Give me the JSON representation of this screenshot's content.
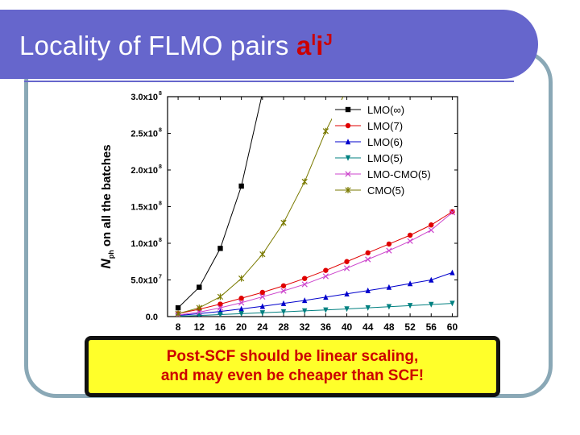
{
  "slide": {
    "title_text": "Locality of FLMO pairs ",
    "title_symbol": "a",
    "title_sup1": "I",
    "title_mid": "i",
    "title_sup2": "J",
    "callout_line1": "Post-SCF should be linear scaling,",
    "callout_line2": "and may even be cheaper than SCF!"
  },
  "colors": {
    "title_bar": "#6666cc",
    "frame": "#8aa8b6",
    "callout_bg": "#ffff2a",
    "callout_text": "#cc0000"
  },
  "chart_data": {
    "type": "line",
    "title": "",
    "xlabel": "",
    "ylabel_main": "N",
    "ylabel_sub": "ph",
    "ylabel_rest": " on all the batches",
    "xlim": [
      6,
      61
    ],
    "ylim": [
      0,
      300000000
    ],
    "xticks": [
      8,
      12,
      16,
      20,
      24,
      28,
      32,
      36,
      40,
      44,
      48,
      52,
      56,
      60
    ],
    "yticks": [
      {
        "value": 0,
        "label": "0.0",
        "exp": ""
      },
      {
        "value": 50000000,
        "label": "5.0x10",
        "exp": "7"
      },
      {
        "value": 100000000,
        "label": "1.0x10",
        "exp": "8"
      },
      {
        "value": 150000000,
        "label": "1.5x10",
        "exp": "8"
      },
      {
        "value": 200000000,
        "label": "2.0x10",
        "exp": "8"
      },
      {
        "value": 250000000,
        "label": "2.5x10",
        "exp": "8"
      },
      {
        "value": 300000000,
        "label": "3.0x10",
        "exp": "8"
      }
    ],
    "grid": false,
    "legend_position": "top-right",
    "x": [
      8,
      12,
      16,
      20,
      24,
      28,
      32,
      36,
      40,
      44,
      48,
      52,
      56,
      60
    ],
    "series": [
      {
        "name": "LMO(∞)",
        "color": "#000000",
        "marker": "square",
        "x": [
          8,
          12,
          16,
          20,
          24
        ],
        "values": [
          12000000,
          40000000,
          93000000,
          178000000,
          305000000
        ]
      },
      {
        "name": "LMO(7)",
        "color": "#e00000",
        "marker": "circle",
        "values": [
          4000000,
          10000000,
          17000000,
          25000000,
          33000000,
          42000000,
          52000000,
          63000000,
          75000000,
          87000000,
          99000000,
          111000000,
          125000000,
          143000000
        ]
      },
      {
        "name": "LMO(6)",
        "color": "#0000cc",
        "marker": "triangle-up",
        "values": [
          1500000,
          4000000,
          7000000,
          10500000,
          14000000,
          18000000,
          22000000,
          26500000,
          31000000,
          35500000,
          40000000,
          45000000,
          50000000,
          60000000
        ]
      },
      {
        "name": "LMO(5)",
        "color": "#008080",
        "marker": "triangle-down",
        "values": [
          500000,
          1500000,
          2800000,
          4000000,
          5200000,
          6500000,
          7800000,
          9000000,
          10500000,
          12000000,
          13500000,
          15000000,
          16500000,
          18000000
        ]
      },
      {
        "name": "LMO-CMO(5)",
        "color": "#cc44cc",
        "marker": "x",
        "values": [
          2000000,
          6000000,
          12000000,
          19000000,
          27000000,
          35000000,
          44000000,
          55000000,
          66000000,
          78000000,
          90000000,
          103000000,
          118000000,
          142000000
        ]
      },
      {
        "name": "CMO(5)",
        "color": "#7a7a00",
        "marker": "asterisk",
        "x": [
          8,
          12,
          16,
          20,
          24,
          28,
          32,
          36,
          40
        ],
        "values": [
          4000000,
          12000000,
          27000000,
          52000000,
          85000000,
          128000000,
          184000000,
          253000000,
          310000000
        ]
      }
    ]
  }
}
